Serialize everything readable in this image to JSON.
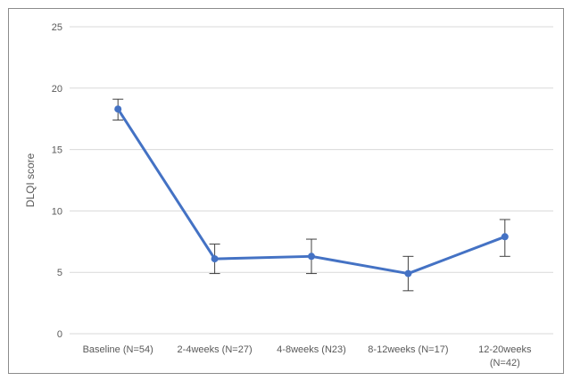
{
  "chart_data": {
    "type": "line",
    "categories": [
      [
        "Baseline (N=54)"
      ],
      [
        "2-4weeks (N=27)"
      ],
      [
        "4-8weeks (N23)"
      ],
      [
        "8-12weeks (N=17)"
      ],
      [
        "12-20weeks",
        "(N=42)"
      ]
    ],
    "ylabel": "DLQI score",
    "ylim": [
      0,
      25
    ],
    "yticks": [
      0,
      5,
      10,
      15,
      20,
      25
    ],
    "grid": true,
    "series": [
      {
        "values": [
          18.3,
          6.1,
          6.3,
          4.9,
          7.9
        ],
        "error_low": [
          17.4,
          4.9,
          4.9,
          3.5,
          6.3
        ],
        "error_high": [
          19.1,
          7.3,
          7.7,
          6.3,
          9.3
        ]
      }
    ],
    "colors": {
      "line": "#4472c4",
      "error": "#404040",
      "grid": "#d9d9d9"
    }
  }
}
